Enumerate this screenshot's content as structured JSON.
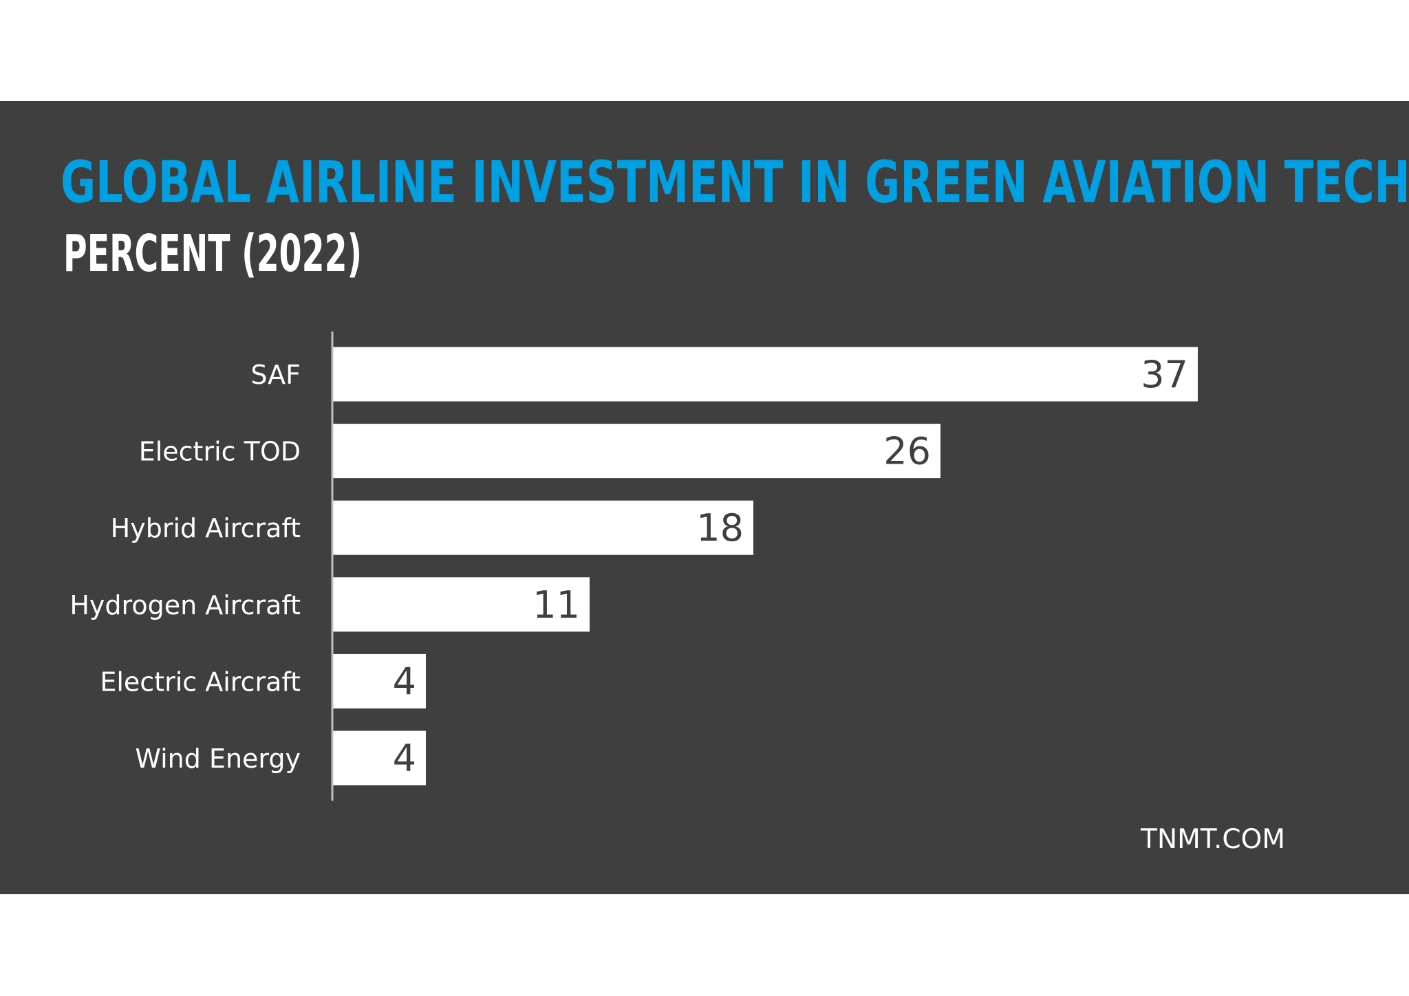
{
  "chart_data": {
    "type": "bar",
    "orientation": "horizontal",
    "title": "GLOBAL AIRLINE INVESTMENT IN GREEN AVIATION TECH",
    "subtitle": "PERCENT (2022)",
    "categories": [
      "SAF",
      "Electric TOD",
      "Hybrid Aircraft",
      "Hydrogen Aircraft",
      "Electric Aircraft",
      "Wind Energy"
    ],
    "values": [
      37,
      26,
      18,
      11,
      4,
      4
    ],
    "xlabel": "",
    "ylabel": "",
    "xlim": [
      0,
      50
    ],
    "grid": false,
    "legend": "none",
    "source": "TNMT.COM"
  },
  "colors": {
    "background": "#3f3f3f",
    "title": "#00a0e3",
    "subtitle": "#ffffff",
    "bar": "#ffffff",
    "bar_label": "#3f3f3f",
    "category_label": "#ffffff",
    "axis": "#bfbfbf"
  }
}
